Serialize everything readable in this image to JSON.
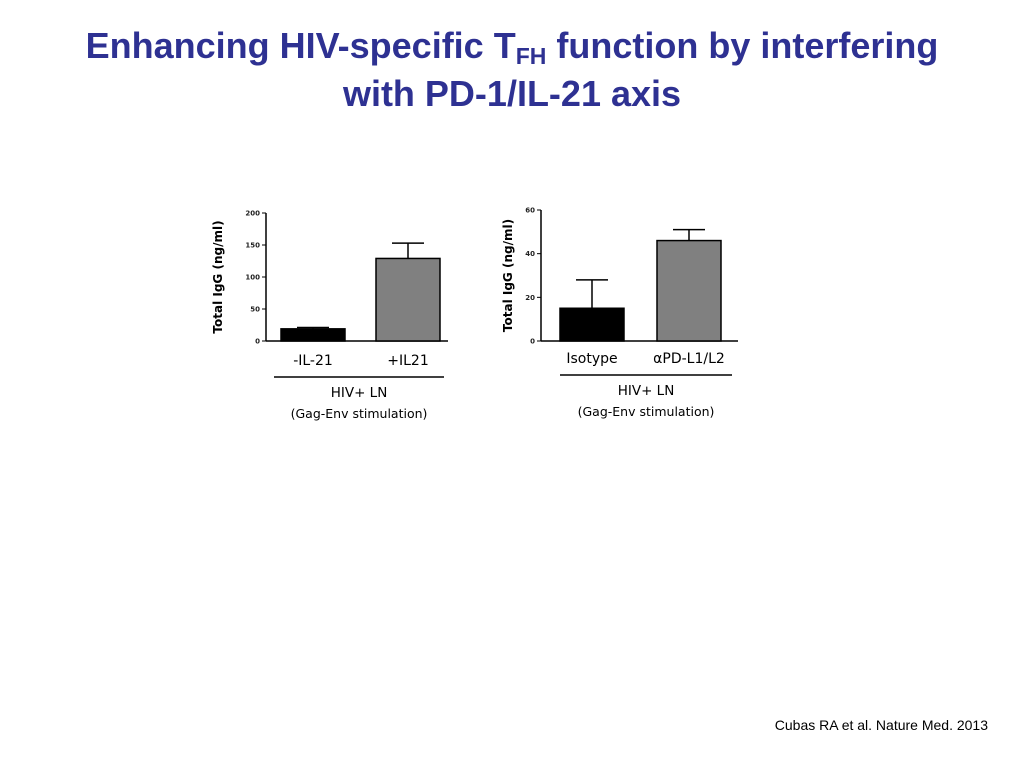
{
  "title": {
    "part1": "Enhancing HIV-specific T",
    "sub": "FH",
    "part2": " function by interfering",
    "line2": "with PD-1/IL-21 axis"
  },
  "chart_data": [
    {
      "type": "bar",
      "ylabel": "Total IgG (ng/ml)",
      "ylim": [
        0,
        200
      ],
      "yticks": [
        0,
        50,
        100,
        150,
        200
      ],
      "categories": [
        "-IL-21",
        "+IL21"
      ],
      "values": [
        19,
        129
      ],
      "errors": [
        2,
        24
      ],
      "colors": [
        "#000000",
        "#808080"
      ],
      "group_label": "HIV+ LN",
      "group_sublabel": "(Gag-Env stimulation)"
    },
    {
      "type": "bar",
      "ylabel": "Total IgG (ng/ml)",
      "ylim": [
        0,
        60
      ],
      "yticks": [
        0,
        20,
        40,
        60
      ],
      "categories": [
        "Isotype",
        "αPD-L1/L2"
      ],
      "values": [
        15,
        46
      ],
      "errors": [
        13,
        5
      ],
      "colors": [
        "#000000",
        "#808080"
      ],
      "group_label": "HIV+ LN",
      "group_sublabel": "(Gag-Env stimulation)"
    }
  ],
  "citation": "Cubas RA et al. Nature Med. 2013"
}
